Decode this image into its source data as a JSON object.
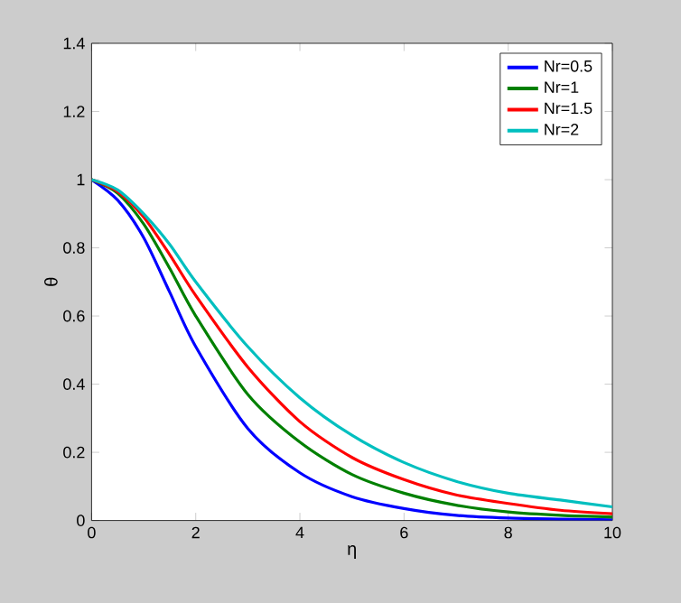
{
  "chart_data": {
    "type": "line",
    "xlabel": "η",
    "ylabel": "θ",
    "xlim": [
      0,
      10
    ],
    "ylim": [
      0,
      1.4
    ],
    "xticks": [
      0,
      2,
      4,
      6,
      8,
      10
    ],
    "yticks": [
      0,
      0.2,
      0.4,
      0.6,
      0.8,
      1,
      1.2,
      1.4
    ],
    "legend": "top right",
    "grid": false,
    "marker": "none",
    "line_style": "solid",
    "x": [
      0,
      0.5,
      1,
      1.5,
      2,
      3,
      4,
      5,
      6,
      7,
      8,
      9,
      10
    ],
    "series": [
      {
        "name": "Nr=0.5",
        "color": "#0000ff",
        "values": [
          1,
          0.94,
          0.83,
          0.67,
          0.51,
          0.27,
          0.14,
          0.07,
          0.035,
          0.015,
          0.007,
          0.004,
          0.002
        ]
      },
      {
        "name": "Nr=1",
        "color": "#008000",
        "values": [
          1,
          0.96,
          0.87,
          0.74,
          0.6,
          0.37,
          0.23,
          0.135,
          0.08,
          0.045,
          0.025,
          0.015,
          0.01
        ]
      },
      {
        "name": "Nr=1.5",
        "color": "#ff0000",
        "values": [
          1,
          0.965,
          0.89,
          0.78,
          0.66,
          0.45,
          0.29,
          0.185,
          0.12,
          0.075,
          0.05,
          0.03,
          0.02
        ]
      },
      {
        "name": "Nr=2",
        "color": "#00bfbf",
        "values": [
          1,
          0.97,
          0.9,
          0.81,
          0.7,
          0.51,
          0.36,
          0.25,
          0.17,
          0.115,
          0.08,
          0.06,
          0.04
        ]
      }
    ]
  }
}
